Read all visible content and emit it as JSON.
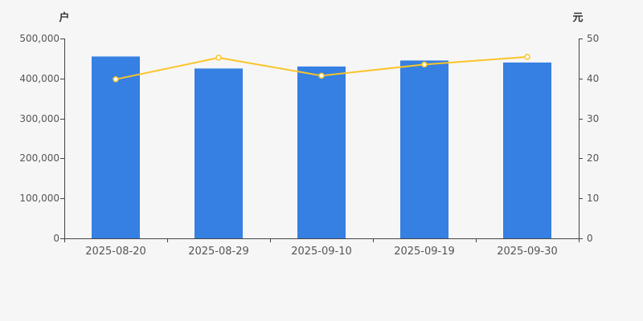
{
  "chart_data": {
    "type": "bar",
    "subtype": "bar+line dual axis",
    "title": "",
    "categories": [
      "2025-08-20",
      "2025-08-29",
      "2025-09-10",
      "2025-09-19",
      "2025-09-30"
    ],
    "series": [
      {
        "name": "holder-count-bars",
        "type": "bar",
        "axis": "left",
        "unit": "户",
        "values": [
          455000,
          425000,
          430000,
          445000,
          440000
        ],
        "color": "#3580E2"
      },
      {
        "name": "price-line",
        "type": "line",
        "axis": "right",
        "unit": "元",
        "values": [
          39.8,
          45.2,
          40.7,
          43.5,
          45.4
        ],
        "color": "#FAC428"
      }
    ],
    "left_axis": {
      "name": "户",
      "min": 0,
      "max": 500000,
      "tick_labels": [
        "0",
        "100,000",
        "200,000",
        "300,000",
        "400,000",
        "500,000"
      ]
    },
    "right_axis": {
      "name": "元",
      "min": 0,
      "max": 50,
      "tick_labels": [
        "0",
        "10",
        "20",
        "30",
        "40",
        "50"
      ]
    },
    "grid": false,
    "legend": "none"
  },
  "style": {
    "background": "#F6F6F6",
    "bar_color": "#3580E2",
    "line_color": "#FAC428",
    "marker_fill": "#FFFFFF",
    "axis_line_color": "#444444",
    "tick_label_color": "#555555",
    "axis_name_color": "#333333"
  }
}
